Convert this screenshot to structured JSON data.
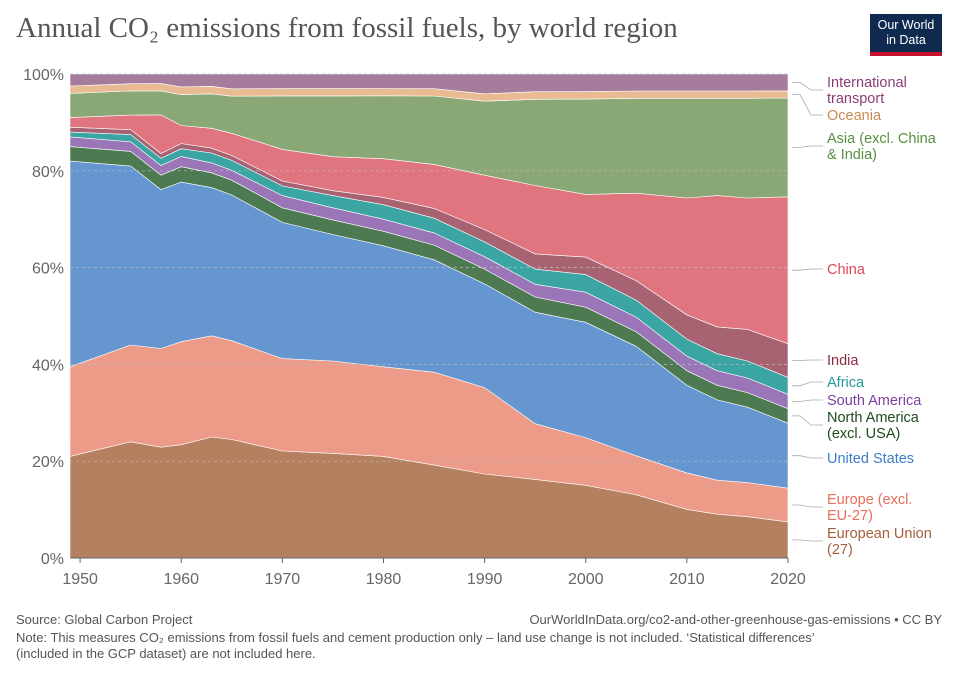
{
  "title": "Annual CO₂ emissions from fossil fuels, by world region",
  "logo": {
    "line1": "Our World",
    "line2": "in Data"
  },
  "footer": {
    "source": "Source: Global Carbon Project",
    "url": "OurWorldInData.org/co2-and-other-greenhouse-gas-emissions • CC BY",
    "note_line1": "Note: This measures CO₂ emissions from fossil fuels and cement production only – land use change is not included. ‘Statistical differences’",
    "note_line2": "(included in the GCP dataset) are not included here."
  },
  "chart_data": {
    "type": "area",
    "stacked": true,
    "percent": true,
    "title": "Annual CO₂ emissions from fossil fuels, by world region",
    "x": [
      1949,
      1955,
      1958,
      1960,
      1963,
      1965,
      1970,
      1975,
      1980,
      1985,
      1990,
      1995,
      2000,
      2005,
      2010,
      2013,
      2016,
      2020
    ],
    "x_ticks": [
      1950,
      1960,
      1970,
      1980,
      1990,
      2000,
      2010,
      2020
    ],
    "y_ticks": [
      0,
      20,
      40,
      60,
      80,
      100
    ],
    "y_tick_labels": [
      "0%",
      "20%",
      "40%",
      "60%",
      "80%",
      "100%"
    ],
    "ylim": [
      0,
      100
    ],
    "series": [
      {
        "name": "European Union (27)",
        "label_lines": [
          "European Union",
          "(27)"
        ],
        "color": "#b5805f",
        "label_color": "#a4603d",
        "values": [
          21,
          24,
          23,
          22,
          24.5,
          24,
          22,
          21.5,
          21,
          19,
          17,
          15.5,
          14.5,
          13,
          10,
          9,
          8.5,
          7.5
        ]
      },
      {
        "name": "Europe (excl. EU-27)",
        "label_lines": [
          "Europe (excl.",
          "EU-27)"
        ],
        "color": "#ec9b88",
        "label_color": "#e56e5a",
        "values": [
          18.5,
          20,
          20.5,
          20,
          20.5,
          20,
          19,
          19,
          18.5,
          19,
          17.5,
          11,
          9.5,
          8,
          7.5,
          7,
          7,
          7
        ]
      },
      {
        "name": "United States",
        "label_lines": [
          "United States"
        ],
        "color": "#6596d0",
        "label_color": "#3e7dc8",
        "values": [
          42.5,
          37,
          33,
          31,
          30,
          29.5,
          28,
          26,
          25,
          23,
          21,
          22,
          23,
          22.5,
          18,
          16.5,
          15.5,
          13.5
        ]
      },
      {
        "name": "North America (excl. USA)",
        "label_lines": [
          "North America",
          "(excl. USA)"
        ],
        "color": "#4e7a51",
        "label_color": "#1f4a1f",
        "values": [
          3,
          3,
          3,
          3,
          3,
          3,
          3,
          3,
          3,
          3,
          3,
          3,
          3,
          3,
          3,
          3,
          3,
          3
        ]
      },
      {
        "name": "South America",
        "label_lines": [
          "South America"
        ],
        "color": "#9a76b9",
        "label_color": "#7d3fa0",
        "values": [
          2,
          2,
          2,
          2,
          2,
          2,
          2.5,
          2.5,
          2.5,
          2.5,
          2.5,
          2.5,
          3,
          3,
          3,
          3,
          3,
          3
        ]
      },
      {
        "name": "Africa",
        "label_lines": [
          "Africa"
        ],
        "color": "#3aa5a3",
        "label_color": "#219a99",
        "values": [
          1,
          1.5,
          1.5,
          1.5,
          2,
          2,
          2,
          2.5,
          3,
          3,
          3,
          3,
          3.5,
          3.5,
          3.5,
          3.5,
          3.5,
          3.5
        ]
      },
      {
        "name": "India",
        "label_lines": [
          "India"
        ],
        "color": "#a86373",
        "label_color": "#8c2b40",
        "values": [
          1,
          1,
          1,
          1,
          1,
          1,
          1,
          1,
          1.5,
          2,
          2.5,
          3,
          3.5,
          4,
          5,
          5.5,
          6.5,
          7
        ]
      },
      {
        "name": "China",
        "label_lines": [
          "China"
        ],
        "color": "#e07580",
        "label_color": "#d8465a",
        "values": [
          2,
          3,
          8,
          3.5,
          4,
          4.5,
          6.5,
          7,
          8,
          9,
          11,
          13.5,
          12.5,
          18,
          24,
          27,
          27,
          30.5
        ]
      },
      {
        "name": "Asia (excl. China & India)",
        "label_lines": [
          "Asia (excl. China",
          "& India)"
        ],
        "color": "#8aa876",
        "label_color": "#58903f",
        "values": [
          5,
          5,
          5,
          6,
          7,
          7.5,
          11,
          12.5,
          13,
          14,
          15,
          17,
          19,
          19.5,
          20.5,
          20,
          20.5,
          20.5
        ]
      },
      {
        "name": "Oceania",
        "label_lines": [
          "Oceania"
        ],
        "color": "#e8bb92",
        "label_color": "#c98a54",
        "values": [
          1.5,
          1.5,
          1.5,
          1.5,
          1.5,
          1.5,
          1.5,
          1.5,
          1.5,
          1.5,
          1.5,
          1.5,
          1.5,
          1.5,
          1.5,
          1.5,
          1.5,
          1.5
        ]
      },
      {
        "name": "International transport",
        "label_lines": [
          "International",
          "transport"
        ],
        "color": "#a67c9c",
        "label_color": "#8a3c78",
        "values": [
          2.5,
          2,
          2,
          2.5,
          2.5,
          3,
          3,
          3,
          3,
          3,
          4,
          3.5,
          3.5,
          3.5,
          3.5,
          3.5,
          3.5,
          3.5
        ]
      }
    ]
  }
}
